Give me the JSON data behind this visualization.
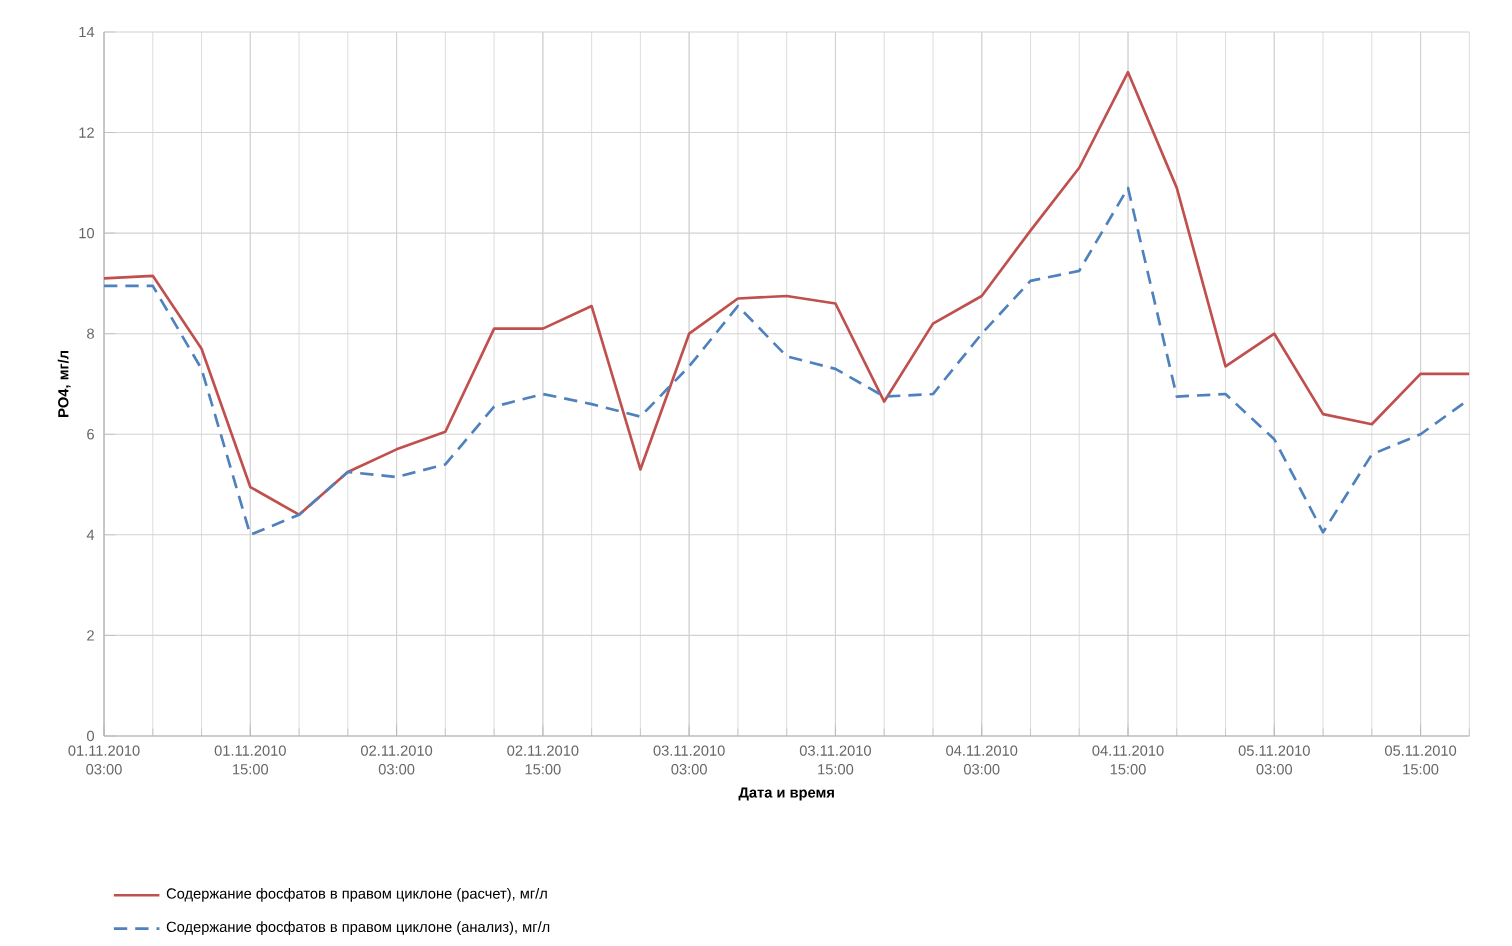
{
  "chart_data": {
    "type": "line",
    "xlabel": "Дата и время",
    "ylabel": "PO4, мг/л",
    "categories": [
      "01.11.2010 03:00",
      null,
      null,
      "01.11.2010 15:00",
      null,
      null,
      "02.11.2010 03:00",
      null,
      null,
      "02.11.2010 15:00",
      null,
      null,
      "03.11.2010 03:00",
      null,
      null,
      "03.11.2010 15:00",
      null,
      null,
      "04.11.2010 03:00",
      null,
      null,
      "04.11.2010 15:00",
      null,
      null,
      "05.11.2010 03:00",
      null,
      null,
      "05.11.2010 15:00",
      null
    ],
    "series": [
      {
        "name": "Содержание фосфатов в правом циклоне (расчет), мг/л",
        "color": "#c0504d",
        "line_style": "solid",
        "values": [
          9.1,
          9.15,
          7.7,
          4.95,
          4.4,
          5.25,
          5.7,
          6.05,
          8.1,
          8.1,
          8.55,
          5.3,
          8.0,
          8.7,
          8.75,
          8.6,
          6.65,
          8.2,
          8.75,
          10.05,
          11.3,
          13.2,
          10.9,
          7.35,
          8.0,
          6.4,
          6.2,
          7.2,
          7.2
        ]
      },
      {
        "name": "Содержание фосфатов в правом циклоне (анализ), мг/л",
        "color": "#4f81bd",
        "line_style": "dashed",
        "values": [
          8.95,
          8.95,
          7.3,
          4.0,
          4.4,
          5.25,
          5.15,
          5.4,
          6.55,
          6.8,
          6.6,
          6.35,
          7.35,
          8.55,
          7.55,
          7.3,
          6.75,
          6.8,
          8.0,
          9.05,
          9.25,
          10.9,
          6.75,
          6.8,
          5.9,
          4.05,
          5.6,
          6.0,
          6.7
        ]
      }
    ],
    "ylim": [
      0,
      14
    ],
    "yticks": [
      0,
      2,
      4,
      6,
      8,
      10,
      12,
      14
    ],
    "grid": true,
    "legend": "bottom",
    "marker": "none"
  }
}
